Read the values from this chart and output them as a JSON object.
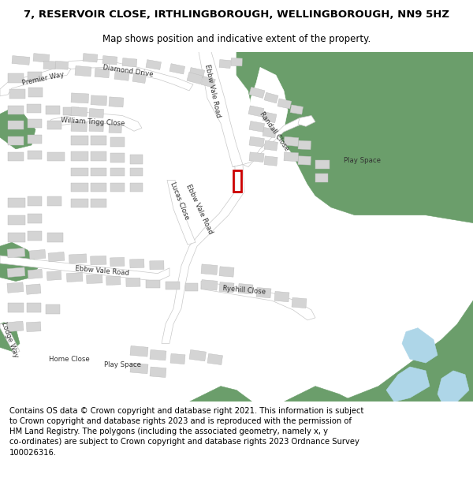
{
  "title_line1": "7, RESERVOIR CLOSE, IRTHLINGBOROUGH, WELLINGBOROUGH, NN9 5HZ",
  "title_line2": "Map shows position and indicative extent of the property.",
  "footer": "Contains OS data © Crown copyright and database right 2021. This information is subject to Crown copyright and database rights 2023 and is reproduced with the permission of HM Land Registry. The polygons (including the associated geometry, namely x, y co-ordinates) are subject to Crown copyright and database rights 2023 Ordnance Survey 100026316.",
  "bg_color": "#ffffff",
  "map_bg": "#ffffff",
  "road_color": "#ffffff",
  "building_color": "#d4d4d4",
  "green_color": "#6b9e6b",
  "water_color": "#aed6e8",
  "marker_color": "#cc0000",
  "title_fontsize": 9.5,
  "subtitle_fontsize": 8.5,
  "footer_fontsize": 7.2
}
